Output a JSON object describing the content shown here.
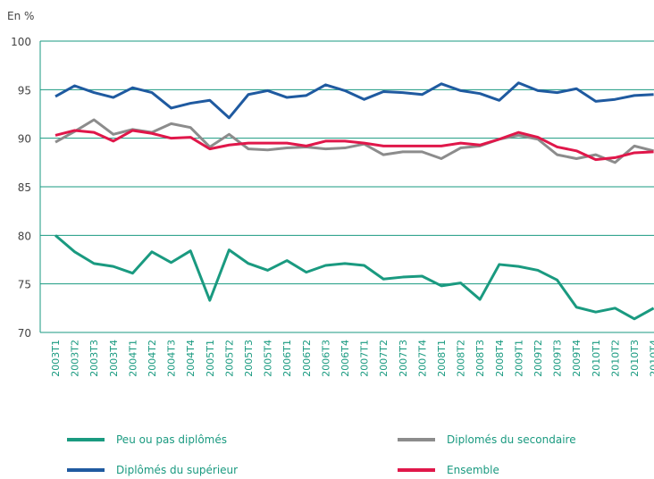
{
  "chart_data": {
    "type": "line",
    "y_label": "En %",
    "categories": [
      "2003T1",
      "2003T2",
      "2003T3",
      "2003T4",
      "2004T1",
      "2004T2",
      "2004T3",
      "2004T4",
      "2005T1",
      "2005T2",
      "2005T3",
      "2005T4",
      "2006T1",
      "2006T2",
      "2006T3",
      "2006T4",
      "2007T1",
      "2007T2",
      "2007T3",
      "2007T4",
      "2008T1",
      "2008T2",
      "2008T3",
      "2008T4",
      "2009T1",
      "2009T2",
      "2009T3",
      "2009T4",
      "2010T1",
      "2010T2",
      "2010T3",
      "2010T4"
    ],
    "series": [
      {
        "name": "Peu ou pas diplômés",
        "color": "#1a9a80",
        "values": [
          80.0,
          78.3,
          77.1,
          76.8,
          76.1,
          78.3,
          77.2,
          78.4,
          73.3,
          78.5,
          77.1,
          76.4,
          77.4,
          76.2,
          76.9,
          77.1,
          76.9,
          75.5,
          75.7,
          75.8,
          74.8,
          75.1,
          73.4,
          77.0,
          76.8,
          76.4,
          75.4,
          72.6,
          72.1,
          72.5,
          71.4,
          72.5
        ]
      },
      {
        "name": "Diplomés du secondaire",
        "color": "#8c8c8c",
        "values": [
          89.6,
          90.7,
          91.9,
          90.4,
          90.9,
          90.6,
          91.5,
          91.1,
          89.1,
          90.4,
          88.9,
          88.8,
          89.0,
          89.1,
          88.9,
          89.0,
          89.4,
          88.3,
          88.6,
          88.6,
          87.9,
          89.0,
          89.2,
          89.9,
          90.3,
          89.9,
          88.3,
          87.9,
          88.3,
          87.5,
          89.2,
          88.7
        ]
      },
      {
        "name": "Diplômés du supérieur",
        "color": "#1f5aa0",
        "values": [
          94.3,
          95.4,
          94.7,
          94.2,
          95.2,
          94.7,
          93.1,
          93.6,
          93.9,
          92.1,
          94.5,
          94.9,
          94.2,
          94.4,
          95.5,
          94.9,
          94.0,
          94.8,
          94.7,
          94.5,
          95.6,
          94.9,
          94.6,
          93.9,
          95.7,
          94.9,
          94.7,
          95.1,
          93.8,
          94.0,
          94.4,
          94.5
        ]
      },
      {
        "name": "Ensemble",
        "color": "#e0174a",
        "values": [
          90.3,
          90.8,
          90.6,
          89.7,
          90.8,
          90.5,
          90.0,
          90.1,
          88.9,
          89.3,
          89.5,
          89.5,
          89.5,
          89.2,
          89.7,
          89.7,
          89.5,
          89.2,
          89.2,
          89.2,
          89.2,
          89.5,
          89.3,
          89.9,
          90.6,
          90.1,
          89.1,
          88.7,
          87.8,
          88.0,
          88.5,
          88.6
        ]
      }
    ],
    "ylim": [
      70,
      100
    ],
    "yticks": [
      70,
      75,
      80,
      85,
      90,
      95,
      100
    ],
    "grid": true,
    "legend": "bottom"
  }
}
